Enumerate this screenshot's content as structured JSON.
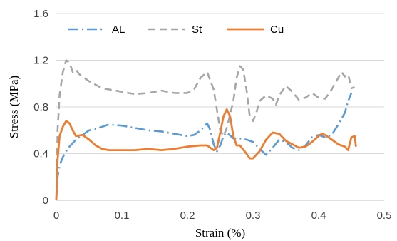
{
  "chart_data": {
    "type": "line",
    "xlabel": "Strain (%)",
    "ylabel": "Stress (MPa)",
    "xlim": [
      0,
      0.5
    ],
    "ylim": [
      0,
      1.6
    ],
    "xticks": [
      "0",
      "0.1",
      "0.2",
      "0.3",
      "0.4",
      "0.5"
    ],
    "yticks": [
      "0",
      "0.4",
      "0.8",
      "1.2",
      "1.6"
    ],
    "grid": "horizontal",
    "legend": "top-left",
    "series": [
      {
        "name": "AL",
        "color": "#5b9bd5",
        "dash": "dash-dot",
        "points": [
          [
            0.0,
            0.0
          ],
          [
            0.002,
            0.2
          ],
          [
            0.005,
            0.3
          ],
          [
            0.01,
            0.37
          ],
          [
            0.015,
            0.42
          ],
          [
            0.02,
            0.46
          ],
          [
            0.03,
            0.52
          ],
          [
            0.04,
            0.56
          ],
          [
            0.05,
            0.6
          ],
          [
            0.06,
            0.61
          ],
          [
            0.07,
            0.63
          ],
          [
            0.08,
            0.65
          ],
          [
            0.1,
            0.64
          ],
          [
            0.12,
            0.62
          ],
          [
            0.14,
            0.6
          ],
          [
            0.16,
            0.59
          ],
          [
            0.18,
            0.57
          ],
          [
            0.2,
            0.55
          ],
          [
            0.21,
            0.56
          ],
          [
            0.22,
            0.6
          ],
          [
            0.23,
            0.66
          ],
          [
            0.235,
            0.6
          ],
          [
            0.24,
            0.48
          ],
          [
            0.245,
            0.42
          ],
          [
            0.25,
            0.47
          ],
          [
            0.255,
            0.55
          ],
          [
            0.26,
            0.58
          ],
          [
            0.27,
            0.53
          ],
          [
            0.28,
            0.53
          ],
          [
            0.29,
            0.52
          ],
          [
            0.3,
            0.5
          ],
          [
            0.31,
            0.44
          ],
          [
            0.32,
            0.39
          ],
          [
            0.33,
            0.45
          ],
          [
            0.34,
            0.52
          ],
          [
            0.35,
            0.5
          ],
          [
            0.36,
            0.45
          ],
          [
            0.37,
            0.43
          ],
          [
            0.38,
            0.47
          ],
          [
            0.39,
            0.54
          ],
          [
            0.4,
            0.56
          ],
          [
            0.41,
            0.54
          ],
          [
            0.42,
            0.56
          ],
          [
            0.43,
            0.65
          ],
          [
            0.44,
            0.75
          ],
          [
            0.445,
            0.85
          ],
          [
            0.45,
            0.92
          ]
        ]
      },
      {
        "name": "St",
        "color": "#a6a6a6",
        "dash": "dash",
        "points": [
          [
            0.0,
            0.0
          ],
          [
            0.002,
            0.6
          ],
          [
            0.005,
            0.9
          ],
          [
            0.01,
            1.1
          ],
          [
            0.015,
            1.2
          ],
          [
            0.02,
            1.18
          ],
          [
            0.025,
            1.1
          ],
          [
            0.03,
            1.12
          ],
          [
            0.035,
            1.08
          ],
          [
            0.05,
            1.02
          ],
          [
            0.07,
            0.96
          ],
          [
            0.08,
            0.95
          ],
          [
            0.1,
            0.93
          ],
          [
            0.12,
            0.91
          ],
          [
            0.14,
            0.92
          ],
          [
            0.16,
            0.94
          ],
          [
            0.18,
            0.92
          ],
          [
            0.2,
            0.92
          ],
          [
            0.21,
            0.95
          ],
          [
            0.22,
            1.05
          ],
          [
            0.23,
            1.1
          ],
          [
            0.24,
            0.95
          ],
          [
            0.25,
            0.6
          ],
          [
            0.255,
            0.55
          ],
          [
            0.26,
            0.62
          ],
          [
            0.27,
            0.85
          ],
          [
            0.275,
            1.05
          ],
          [
            0.28,
            1.15
          ],
          [
            0.285,
            1.12
          ],
          [
            0.29,
            0.95
          ],
          [
            0.295,
            0.72
          ],
          [
            0.3,
            0.68
          ],
          [
            0.305,
            0.75
          ],
          [
            0.31,
            0.85
          ],
          [
            0.32,
            0.9
          ],
          [
            0.33,
            0.87
          ],
          [
            0.335,
            0.82
          ],
          [
            0.34,
            0.9
          ],
          [
            0.35,
            0.98
          ],
          [
            0.36,
            0.93
          ],
          [
            0.37,
            0.86
          ],
          [
            0.38,
            0.88
          ],
          [
            0.39,
            0.92
          ],
          [
            0.4,
            0.88
          ],
          [
            0.41,
            0.87
          ],
          [
            0.42,
            0.95
          ],
          [
            0.43,
            1.05
          ],
          [
            0.435,
            1.1
          ],
          [
            0.44,
            1.06
          ],
          [
            0.445,
            1.08
          ],
          [
            0.45,
            0.96
          ],
          [
            0.455,
            0.97
          ]
        ]
      },
      {
        "name": "Cu",
        "color": "#ed7d31",
        "dash": "solid",
        "points": [
          [
            0.0,
            0.0
          ],
          [
            0.002,
            0.35
          ],
          [
            0.005,
            0.55
          ],
          [
            0.01,
            0.63
          ],
          [
            0.015,
            0.68
          ],
          [
            0.02,
            0.66
          ],
          [
            0.025,
            0.6
          ],
          [
            0.03,
            0.55
          ],
          [
            0.04,
            0.56
          ],
          [
            0.05,
            0.52
          ],
          [
            0.06,
            0.47
          ],
          [
            0.07,
            0.44
          ],
          [
            0.08,
            0.43
          ],
          [
            0.1,
            0.43
          ],
          [
            0.12,
            0.43
          ],
          [
            0.14,
            0.44
          ],
          [
            0.16,
            0.43
          ],
          [
            0.18,
            0.44
          ],
          [
            0.2,
            0.46
          ],
          [
            0.22,
            0.47
          ],
          [
            0.23,
            0.47
          ],
          [
            0.24,
            0.43
          ],
          [
            0.245,
            0.45
          ],
          [
            0.25,
            0.58
          ],
          [
            0.255,
            0.72
          ],
          [
            0.26,
            0.78
          ],
          [
            0.265,
            0.72
          ],
          [
            0.27,
            0.55
          ],
          [
            0.275,
            0.47
          ],
          [
            0.28,
            0.47
          ],
          [
            0.29,
            0.4
          ],
          [
            0.295,
            0.36
          ],
          [
            0.3,
            0.36
          ],
          [
            0.31,
            0.42
          ],
          [
            0.32,
            0.52
          ],
          [
            0.33,
            0.58
          ],
          [
            0.34,
            0.57
          ],
          [
            0.35,
            0.51
          ],
          [
            0.36,
            0.48
          ],
          [
            0.37,
            0.45
          ],
          [
            0.38,
            0.46
          ],
          [
            0.39,
            0.5
          ],
          [
            0.4,
            0.55
          ],
          [
            0.405,
            0.57
          ],
          [
            0.41,
            0.56
          ],
          [
            0.42,
            0.52
          ],
          [
            0.43,
            0.48
          ],
          [
            0.44,
            0.46
          ],
          [
            0.445,
            0.43
          ],
          [
            0.45,
            0.54
          ],
          [
            0.455,
            0.55
          ],
          [
            0.457,
            0.46
          ]
        ]
      }
    ]
  }
}
